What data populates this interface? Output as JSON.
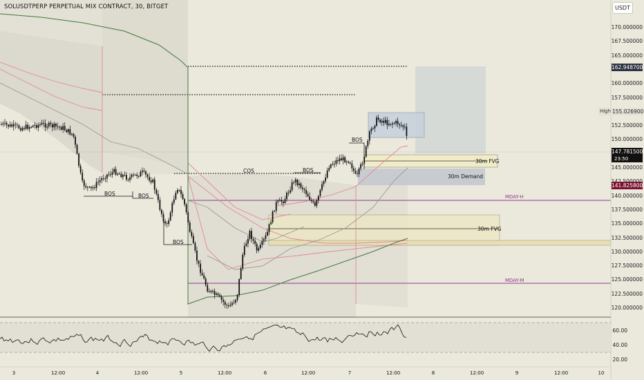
{
  "header": {
    "title": "SOLUSDTPERP PERPETUAL MIX CONTRACT, 30, BITGET",
    "currency": "USDT"
  },
  "price_axis": {
    "ticks": [
      "170.000000",
      "167.500000",
      "165.000000",
      "162.500000",
      "160.000000",
      "157.500000",
      "155.000000",
      "152.500000",
      "150.000000",
      "147.500000",
      "145.000000",
      "142.500000",
      "140.000000",
      "137.500000",
      "135.000000",
      "132.500000",
      "130.000000",
      "127.500000",
      "125.000000",
      "122.500000",
      "120.000000"
    ],
    "badges": {
      "top": "162.948700",
      "high_label": "High",
      "high_value": "155.026900",
      "last_price": "147.781500",
      "countdown": "23:50",
      "low": "141.825800"
    }
  },
  "osc_axis": {
    "ticks": [
      "60.00",
      "40.00",
      "20.00"
    ]
  },
  "time_axis": {
    "ticks": [
      "3",
      "12:00",
      "4",
      "12:00",
      "5",
      "12:00",
      "6",
      "12:00",
      "7",
      "12:00",
      "8",
      "12:00",
      "9",
      "12:00",
      "10"
    ]
  },
  "annotations": {
    "bos": [
      "BOS",
      "BOS",
      "BOS",
      "BOS",
      "BOS"
    ],
    "cos": "COS",
    "fvg_upper": "30m FVG",
    "fvg_lower": "30m FVG",
    "demand": "30m Demand",
    "mday_h": "MDAY-H",
    "mday_m": "MDAY-M"
  },
  "colors": {
    "background": "#ebe8dc",
    "candle": "#111111",
    "mday": "#8e3a8e",
    "ema_green": "#3f7a3f",
    "pink": "#e08a96",
    "last_price_bg": "#111111",
    "low_bg": "#7a1030",
    "top_bg": "#2e3340"
  }
}
